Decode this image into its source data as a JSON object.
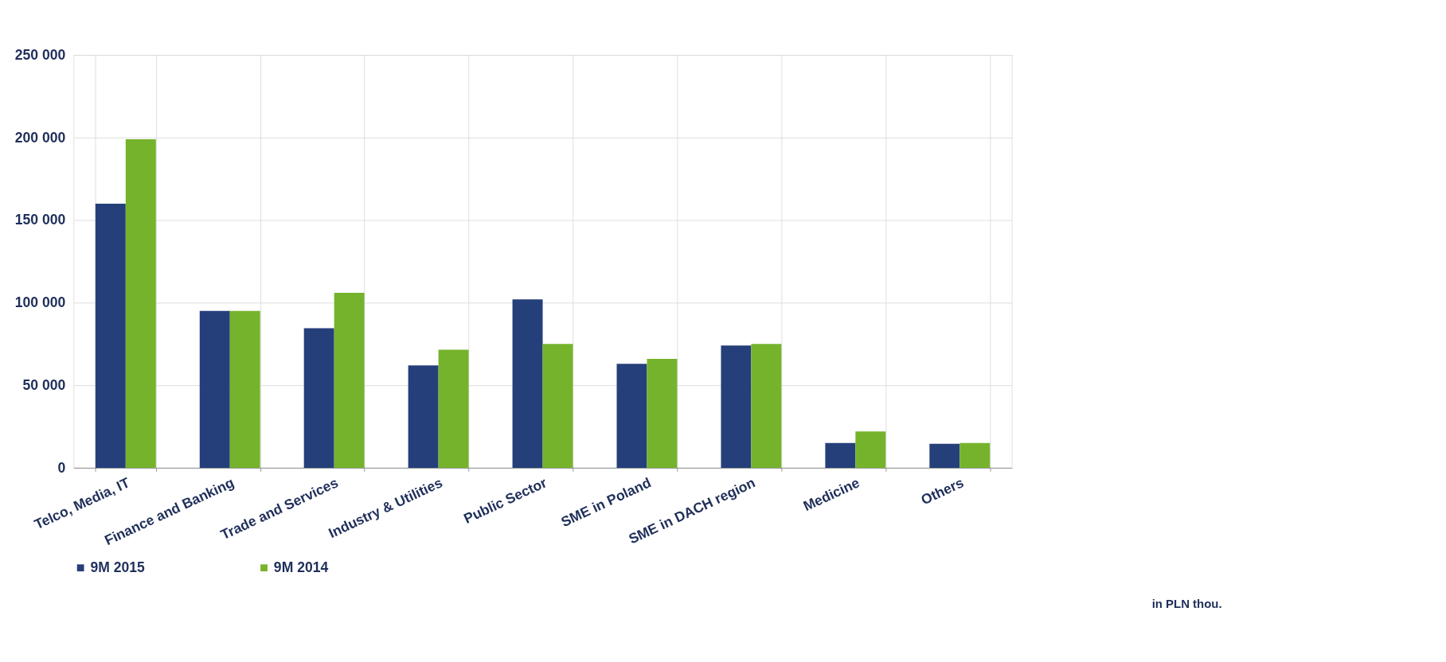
{
  "chart_data": {
    "type": "bar",
    "categories": [
      "Telco, Media, IT",
      "Finance and Banking",
      "Trade and Services",
      "Industry & Utilities",
      "Public Sector",
      "SME in Poland",
      "SME in DACH region",
      "Medicine",
      "Others"
    ],
    "series": [
      {
        "name": "9M 2015",
        "color": "#253f7a",
        "values": [
          160000,
          95000,
          84500,
          62000,
          102000,
          63000,
          74000,
          15000,
          14500
        ]
      },
      {
        "name": "9M 2014",
        "color": "#76b32c",
        "values": [
          199000,
          95000,
          106000,
          71500,
          75000,
          66000,
          75000,
          22000,
          15000
        ]
      }
    ],
    "ylim": [
      0,
      250000
    ],
    "yticks": [
      {
        "value": 0,
        "label": "0"
      },
      {
        "value": 50000,
        "label": "50 000"
      },
      {
        "value": 100000,
        "label": "100 000"
      },
      {
        "value": 150000,
        "label": "150 000"
      },
      {
        "value": 200000,
        "label": "200 000"
      },
      {
        "value": 250000,
        "label": "250 000"
      }
    ],
    "grid": true,
    "legend": "bottom",
    "annotations": [
      "in PLN thou."
    ]
  }
}
